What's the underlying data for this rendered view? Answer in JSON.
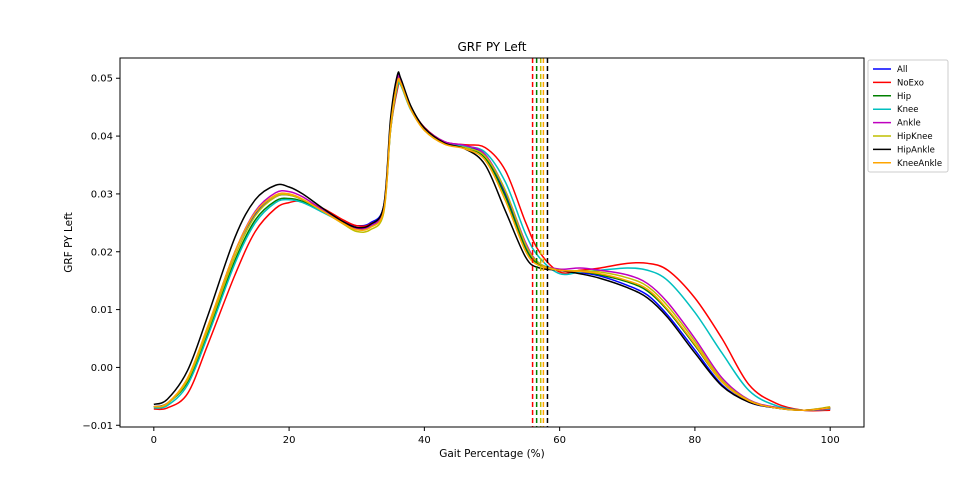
{
  "chart_data": {
    "type": "line",
    "title": "GRF PY Left",
    "xlabel": "Gait Percentage (%)",
    "ylabel": "GRF PY Left",
    "xlim": [
      -5,
      105
    ],
    "ylim": [
      -0.0103,
      0.0535
    ],
    "xticks": [
      "0",
      "20",
      "40",
      "60",
      "80",
      "100"
    ],
    "yticks": [
      "−0.01",
      "0.00",
      "0.01",
      "0.02",
      "0.03",
      "0.04",
      "0.05"
    ],
    "grid": false,
    "legend_position": "outside-top-right",
    "series": [
      {
        "name": "All",
        "color": "#0000ff",
        "x": [
          0,
          2,
          5,
          8,
          12,
          15,
          18,
          20,
          22,
          25,
          28,
          30,
          32,
          34,
          35,
          36,
          36.5,
          38,
          40,
          43,
          46,
          49,
          52,
          55,
          57,
          60,
          63,
          66,
          70,
          73,
          76,
          80,
          84,
          88,
          92,
          96,
          100
        ],
        "y": [
          -0.0068,
          -0.0063,
          -0.002,
          0.007,
          0.02,
          0.0265,
          0.0295,
          0.0298,
          0.029,
          0.027,
          0.0252,
          0.0245,
          0.025,
          0.028,
          0.042,
          0.05,
          0.0497,
          0.045,
          0.0415,
          0.039,
          0.0383,
          0.0365,
          0.03,
          0.021,
          0.018,
          0.0168,
          0.0164,
          0.0158,
          0.0142,
          0.0125,
          0.009,
          0.003,
          -0.003,
          -0.006,
          -0.007,
          -0.0074,
          -0.0072
        ]
      },
      {
        "name": "NoExo",
        "color": "#ff0000",
        "x": [
          0,
          2,
          5,
          8,
          12,
          15,
          18,
          20,
          22,
          25,
          28,
          30,
          32,
          34,
          35,
          36,
          36.5,
          38,
          40,
          43,
          46,
          49,
          52,
          55,
          57,
          60,
          63,
          66,
          70,
          73,
          76,
          80,
          84,
          88,
          92,
          96,
          100
        ],
        "y": [
          -0.0072,
          -0.007,
          -0.0045,
          0.004,
          0.016,
          0.0235,
          0.0275,
          0.0285,
          0.0287,
          0.0275,
          0.0255,
          0.0245,
          0.0248,
          0.0275,
          0.041,
          0.048,
          0.049,
          0.045,
          0.0415,
          0.039,
          0.0385,
          0.038,
          0.034,
          0.025,
          0.02,
          0.0165,
          0.0168,
          0.0172,
          0.018,
          0.018,
          0.0168,
          0.012,
          0.005,
          -0.003,
          -0.0062,
          -0.0074,
          -0.0074
        ]
      },
      {
        "name": "Hip",
        "color": "#008000",
        "x": [
          0,
          2,
          5,
          8,
          12,
          15,
          18,
          20,
          22,
          25,
          28,
          30,
          32,
          34,
          35,
          36,
          36.5,
          38,
          40,
          43,
          46,
          49,
          52,
          55,
          57,
          60,
          63,
          66,
          70,
          73,
          76,
          80,
          84,
          88,
          92,
          96,
          100
        ],
        "y": [
          -0.0068,
          -0.0062,
          -0.0025,
          0.006,
          0.0185,
          0.0255,
          0.0288,
          0.0292,
          0.0287,
          0.027,
          0.025,
          0.024,
          0.0245,
          0.0275,
          0.042,
          0.0495,
          0.0493,
          0.0448,
          0.0412,
          0.0388,
          0.038,
          0.0362,
          0.0295,
          0.0205,
          0.0178,
          0.0168,
          0.0166,
          0.016,
          0.0148,
          0.0132,
          0.0098,
          0.0038,
          -0.0025,
          -0.0058,
          -0.007,
          -0.0074,
          -0.007
        ]
      },
      {
        "name": "Knee",
        "color": "#00bfbf",
        "x": [
          0,
          2,
          5,
          8,
          12,
          15,
          18,
          20,
          22,
          25,
          28,
          30,
          32,
          34,
          35,
          36,
          36.5,
          38,
          40,
          43,
          46,
          49,
          52,
          55,
          57,
          60,
          63,
          66,
          70,
          73,
          76,
          80,
          84,
          88,
          92,
          96,
          100
        ],
        "y": [
          -0.007,
          -0.0066,
          -0.003,
          0.0055,
          0.018,
          0.025,
          0.0285,
          0.029,
          0.0285,
          0.0268,
          0.025,
          0.024,
          0.0244,
          0.0272,
          0.041,
          0.0485,
          0.0488,
          0.0445,
          0.0412,
          0.0388,
          0.0382,
          0.0372,
          0.032,
          0.023,
          0.019,
          0.0162,
          0.0165,
          0.0168,
          0.0172,
          0.0168,
          0.015,
          0.0095,
          0.0025,
          -0.004,
          -0.0066,
          -0.0074,
          -0.0072
        ]
      },
      {
        "name": "Ankle",
        "color": "#bf00bf",
        "x": [
          0,
          2,
          5,
          8,
          12,
          15,
          18,
          20,
          22,
          25,
          28,
          30,
          32,
          34,
          35,
          36,
          36.5,
          38,
          40,
          43,
          46,
          49,
          52,
          55,
          57,
          60,
          63,
          66,
          70,
          73,
          76,
          80,
          84,
          88,
          92,
          96,
          100
        ],
        "y": [
          -0.0068,
          -0.0062,
          -0.002,
          0.007,
          0.02,
          0.027,
          0.0302,
          0.0304,
          0.0295,
          0.0272,
          0.025,
          0.024,
          0.0245,
          0.0275,
          0.042,
          0.0498,
          0.0495,
          0.045,
          0.0414,
          0.039,
          0.0384,
          0.0368,
          0.0305,
          0.0215,
          0.018,
          0.017,
          0.0172,
          0.0168,
          0.016,
          0.0145,
          0.0112,
          0.005,
          -0.0018,
          -0.0056,
          -0.0069,
          -0.0074,
          -0.0071
        ]
      },
      {
        "name": "HipKnee",
        "color": "#bfbf00",
        "x": [
          0,
          2,
          5,
          8,
          12,
          15,
          18,
          20,
          22,
          25,
          28,
          30,
          32,
          34,
          35,
          36,
          36.5,
          38,
          40,
          43,
          46,
          49,
          52,
          55,
          57,
          60,
          63,
          66,
          70,
          73,
          76,
          80,
          84,
          88,
          92,
          96,
          100
        ],
        "y": [
          -0.0068,
          -0.0063,
          -0.0022,
          0.0065,
          0.0192,
          0.0262,
          0.0295,
          0.0298,
          0.029,
          0.027,
          0.0248,
          0.0235,
          0.0238,
          0.0268,
          0.041,
          0.049,
          0.049,
          0.0446,
          0.041,
          0.0386,
          0.038,
          0.0365,
          0.0305,
          0.0212,
          0.018,
          0.0168,
          0.0167,
          0.0165,
          0.0155,
          0.014,
          0.0106,
          0.0045,
          -0.0022,
          -0.0057,
          -0.007,
          -0.0074,
          -0.0068
        ]
      },
      {
        "name": "HipAnkle",
        "color": "#000000",
        "x": [
          0,
          2,
          5,
          8,
          12,
          15,
          18,
          20,
          22,
          25,
          28,
          30,
          32,
          34,
          35,
          36,
          36.5,
          38,
          40,
          43,
          46,
          49,
          52,
          55,
          57,
          60,
          63,
          66,
          70,
          73,
          76,
          80,
          84,
          88,
          92,
          96,
          100
        ],
        "y": [
          -0.0064,
          -0.0055,
          -0.0005,
          0.009,
          0.0225,
          0.029,
          0.0315,
          0.0312,
          0.03,
          0.0275,
          0.0252,
          0.0242,
          0.0247,
          0.028,
          0.043,
          0.0505,
          0.05,
          0.0452,
          0.0414,
          0.0388,
          0.0378,
          0.035,
          0.027,
          0.019,
          0.0172,
          0.0168,
          0.0162,
          0.0154,
          0.0138,
          0.012,
          0.0086,
          0.0025,
          -0.0032,
          -0.006,
          -0.007,
          -0.0074,
          -0.007
        ]
      },
      {
        "name": "KneeAnkle",
        "color": "#ffa500",
        "x": [
          0,
          2,
          5,
          8,
          12,
          15,
          18,
          20,
          22,
          25,
          28,
          30,
          32,
          34,
          35,
          36,
          36.5,
          38,
          40,
          43,
          46,
          49,
          52,
          55,
          57,
          60,
          63,
          66,
          70,
          73,
          76,
          80,
          84,
          88,
          92,
          96,
          100
        ],
        "y": [
          -0.0068,
          -0.0062,
          -0.0018,
          0.0072,
          0.02,
          0.0268,
          0.0298,
          0.03,
          0.0291,
          0.027,
          0.0249,
          0.0238,
          0.0242,
          0.0272,
          0.0415,
          0.0492,
          0.0492,
          0.0446,
          0.041,
          0.0386,
          0.0378,
          0.0358,
          0.0288,
          0.02,
          0.0176,
          0.0168,
          0.0166,
          0.0162,
          0.015,
          0.0135,
          0.01,
          0.004,
          -0.0025,
          -0.0058,
          -0.007,
          -0.0074,
          -0.007
        ]
      }
    ],
    "vertical_lines": [
      {
        "x": 56.0,
        "color": "#ff0000"
      },
      {
        "x": 56.6,
        "color": "#008000"
      },
      {
        "x": 57.2,
        "color": "#bfbf00"
      },
      {
        "x": 57.6,
        "color": "#ffa500"
      },
      {
        "x": 58.2,
        "color": "#000000"
      }
    ]
  }
}
